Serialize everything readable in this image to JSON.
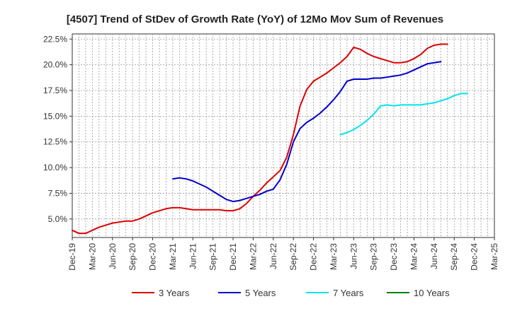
{
  "chart_data": {
    "type": "line",
    "title": "[4507]  Trend of StDev of Growth Rate (YoY) of 12Mo Mov Sum of Revenues",
    "xlabel": "",
    "ylabel": "",
    "x_tick_labels": [
      "Dec-19",
      "Mar-20",
      "Jun-20",
      "Sep-20",
      "Dec-20",
      "Mar-21",
      "Jun-21",
      "Sep-21",
      "Dec-21",
      "Mar-22",
      "Jun-22",
      "Sep-22",
      "Dec-22",
      "Mar-23",
      "Jun-23",
      "Sep-23",
      "Dec-23",
      "Mar-24",
      "Jun-24",
      "Sep-24",
      "Dec-24",
      "Mar-25"
    ],
    "y_tick_labels": [
      "5.0%",
      "7.5%",
      "10.0%",
      "12.5%",
      "15.0%",
      "17.5%",
      "20.0%",
      "22.5%"
    ],
    "y_ticks": [
      5.0,
      7.5,
      10.0,
      12.5,
      15.0,
      17.5,
      20.0,
      22.5
    ],
    "ylim": [
      3.2,
      23.0
    ],
    "x_range_months": [
      0,
      63
    ],
    "grid": true,
    "legend_position": "bottom",
    "series": [
      {
        "name": "3 Years",
        "color": "#dd0000",
        "start_month": 0,
        "values": [
          3.9,
          3.6,
          3.6,
          3.9,
          4.2,
          4.4,
          4.6,
          4.7,
          4.8,
          4.8,
          5.0,
          5.3,
          5.6,
          5.8,
          6.0,
          6.1,
          6.1,
          6.0,
          5.9,
          5.9,
          5.9,
          5.9,
          5.9,
          5.8,
          5.8,
          6.0,
          6.5,
          7.2,
          7.8,
          8.5,
          9.1,
          9.7,
          11.0,
          13.2,
          16.0,
          17.6,
          18.4,
          18.8,
          19.2,
          19.7,
          20.2,
          20.8,
          21.7,
          21.5,
          21.1,
          20.8,
          20.6,
          20.4,
          20.2,
          20.2,
          20.3,
          20.6,
          21.0,
          21.6,
          21.9,
          22.0,
          22.0
        ]
      },
      {
        "name": "5 Years",
        "color": "#0000cc",
        "start_month": 15,
        "values": [
          8.9,
          9.0,
          8.9,
          8.7,
          8.4,
          8.1,
          7.7,
          7.3,
          6.9,
          6.7,
          6.8,
          7.0,
          7.2,
          7.4,
          7.7,
          7.9,
          8.8,
          10.3,
          12.5,
          13.8,
          14.4,
          14.8,
          15.3,
          15.9,
          16.6,
          17.4,
          18.4,
          18.6,
          18.6,
          18.6,
          18.7,
          18.7,
          18.8,
          18.9,
          19.0,
          19.2,
          19.5,
          19.8,
          20.1,
          20.2,
          20.3
        ]
      },
      {
        "name": "7 Years",
        "color": "#00e5ee",
        "start_month": 40,
        "values": [
          13.2,
          13.4,
          13.7,
          14.1,
          14.6,
          15.2,
          16.0,
          16.1,
          16.0,
          16.1,
          16.1,
          16.1,
          16.1,
          16.2,
          16.3,
          16.5,
          16.7,
          17.0,
          17.2,
          17.2
        ]
      },
      {
        "name": "10 Years",
        "color": "#008000",
        "start_month": 0,
        "values": []
      }
    ]
  }
}
